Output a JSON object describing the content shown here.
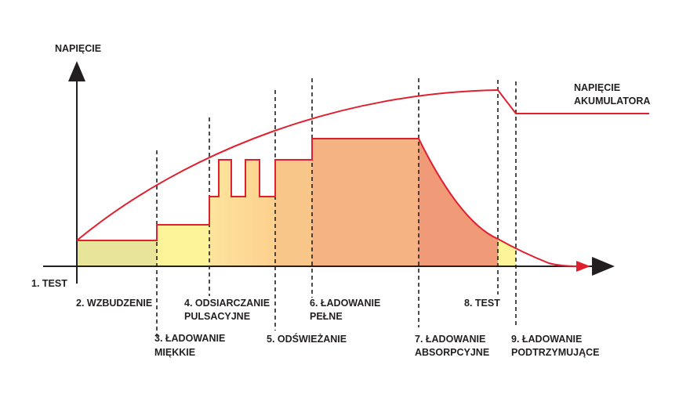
{
  "axes": {
    "y_label": "NAPIĘCIE",
    "x_label": ""
  },
  "curve_label": [
    "NAPIĘCIE",
    "AKUMULATORA"
  ],
  "stages": [
    {
      "label": [
        "1. TEST"
      ]
    },
    {
      "label": [
        "2. WZBUDZENIE"
      ],
      "color": "#e8e59a"
    },
    {
      "label": [
        "3. ŁADOWANIE",
        "MIĘKKIE"
      ],
      "color": "#fdf49a"
    },
    {
      "label": [
        "4. ODSIARCZANIE",
        "PULSACYJNE"
      ],
      "color": "#fddc96"
    },
    {
      "label": [
        "5. ODŚWIEŻANIE"
      ],
      "color": "#f9c68a"
    },
    {
      "label": [
        "6. ŁADOWANIE",
        "PEŁNE"
      ],
      "color": "#f5b283"
    },
    {
      "label": [
        "7. ŁADOWANIE",
        "ABSORPCYJNE"
      ],
      "color": "#f09a78"
    },
    {
      "label": [
        "8. TEST"
      ]
    },
    {
      "label": [
        "9. ŁADOWANIE",
        "PODTRZYMUJĄCE"
      ],
      "color": "#fdf49a"
    }
  ],
  "colors": {
    "curve": "#e0202e",
    "axis": "#231f20"
  }
}
